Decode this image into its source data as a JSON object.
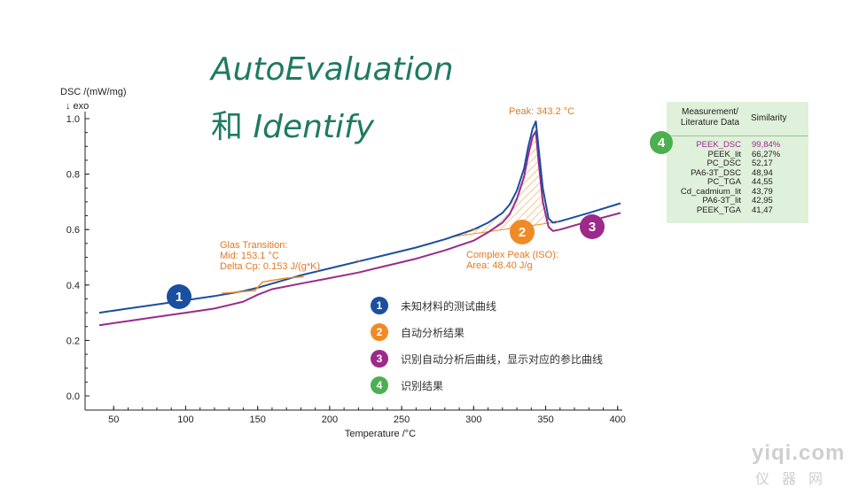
{
  "heading": {
    "line1": "AutoEvaluation",
    "line2_cn": "和",
    "line2_en": "Identify"
  },
  "chart_data": {
    "type": "line",
    "ylabel": "DSC /(mW/mg)",
    "exo_label": "↓ exo",
    "xlabel": "Temperature /°C",
    "xlim": [
      40,
      402
    ],
    "ylim": [
      -0.02,
      1.07
    ],
    "xticks": [
      50,
      100,
      150,
      200,
      250,
      300,
      350,
      400
    ],
    "yticks": [
      0.0,
      0.2,
      0.4,
      0.6,
      0.8,
      1.0
    ],
    "ytick_labels": [
      "0.0",
      "0.2",
      "0.4",
      "0.6",
      "0.8",
      "1.0"
    ],
    "series": [
      {
        "role": "unknown-material",
        "color": "#1a4fa0",
        "x": [
          40,
          60,
          80,
          100,
          120,
          140,
          150,
          160,
          180,
          200,
          220,
          240,
          260,
          280,
          300,
          310,
          320,
          325,
          330,
          335,
          338,
          341,
          343.2,
          345,
          348,
          352,
          355,
          360,
          380,
          402
        ],
        "y": [
          0.3,
          0.315,
          0.33,
          0.345,
          0.36,
          0.378,
          0.39,
          0.405,
          0.435,
          0.46,
          0.485,
          0.51,
          0.535,
          0.565,
          0.6,
          0.625,
          0.66,
          0.69,
          0.74,
          0.82,
          0.9,
          0.965,
          0.99,
          0.9,
          0.75,
          0.64,
          0.625,
          0.63,
          0.66,
          0.695
        ]
      },
      {
        "role": "reference-curve",
        "color": "#9c2a8a",
        "x": [
          40,
          60,
          80,
          100,
          120,
          140,
          150,
          160,
          180,
          200,
          220,
          240,
          260,
          280,
          300,
          310,
          320,
          325,
          330,
          335,
          338,
          341,
          343.2,
          345,
          348,
          352,
          355,
          360,
          380,
          402
        ],
        "y": [
          0.255,
          0.27,
          0.285,
          0.3,
          0.315,
          0.34,
          0.365,
          0.385,
          0.405,
          0.425,
          0.445,
          0.47,
          0.495,
          0.525,
          0.56,
          0.59,
          0.625,
          0.655,
          0.71,
          0.79,
          0.87,
          0.935,
          0.955,
          0.85,
          0.7,
          0.61,
          0.595,
          0.6,
          0.63,
          0.66
        ]
      }
    ],
    "peak_area": {
      "x_start": 285,
      "x_end": 356
    },
    "glass_marker": {
      "x": [
        125,
        137,
        148,
        153.1,
        158,
        170,
        182
      ],
      "y": [
        0.37,
        0.375,
        0.38,
        0.41,
        0.415,
        0.425,
        0.43
      ]
    },
    "annotations": {
      "peak": "Peak: 343.2 °C",
      "glass_lines": [
        "Glas Transition:",
        "Mid: 153.1 °C",
        "Delta Cp: 0.153 J/(g*K)"
      ],
      "complex_lines": [
        "Complex Peak (ISO):",
        "Area: 48.40 J/g"
      ]
    },
    "badges": [
      {
        "num": "1",
        "color": "#1a4fa0"
      },
      {
        "num": "2",
        "color": "#f08a24"
      },
      {
        "num": "3",
        "color": "#9c2a8a"
      }
    ]
  },
  "legend": [
    {
      "num": "1",
      "color": "#1a4fa0",
      "text": "未知材料的测试曲线"
    },
    {
      "num": "2",
      "color": "#f08a24",
      "text": "自动分析结果"
    },
    {
      "num": "3",
      "color": "#9c2a8a",
      "text": "识别自动分析后曲线，显示对应的参比曲线"
    },
    {
      "num": "4",
      "color": "#4caf50",
      "text": "识别结果"
    }
  ],
  "results_panel": {
    "badge": "4",
    "col1_header_lines": [
      "Measurement/",
      "Literature Data"
    ],
    "col2_header": "Similarity",
    "rows": [
      {
        "name": "PEEK_DSC",
        "value": "99,84%",
        "highlight": true
      },
      {
        "name": "PEEK_lit",
        "value": "66,27%"
      },
      {
        "name": "PC_DSC",
        "value": "52,17"
      },
      {
        "name": "PA6-3T_DSC",
        "value": "48,94"
      },
      {
        "name": "PC_TGA",
        "value": "44,55"
      },
      {
        "name": "Cd_cadmium_lit",
        "value": "43,79"
      },
      {
        "name": "PA6-3T_lit",
        "value": "42,95"
      },
      {
        "name": "PEEK_TGA",
        "value": "41,47"
      }
    ]
  },
  "watermark": {
    "line1": "yiqi.com",
    "line2": "仪器网"
  }
}
